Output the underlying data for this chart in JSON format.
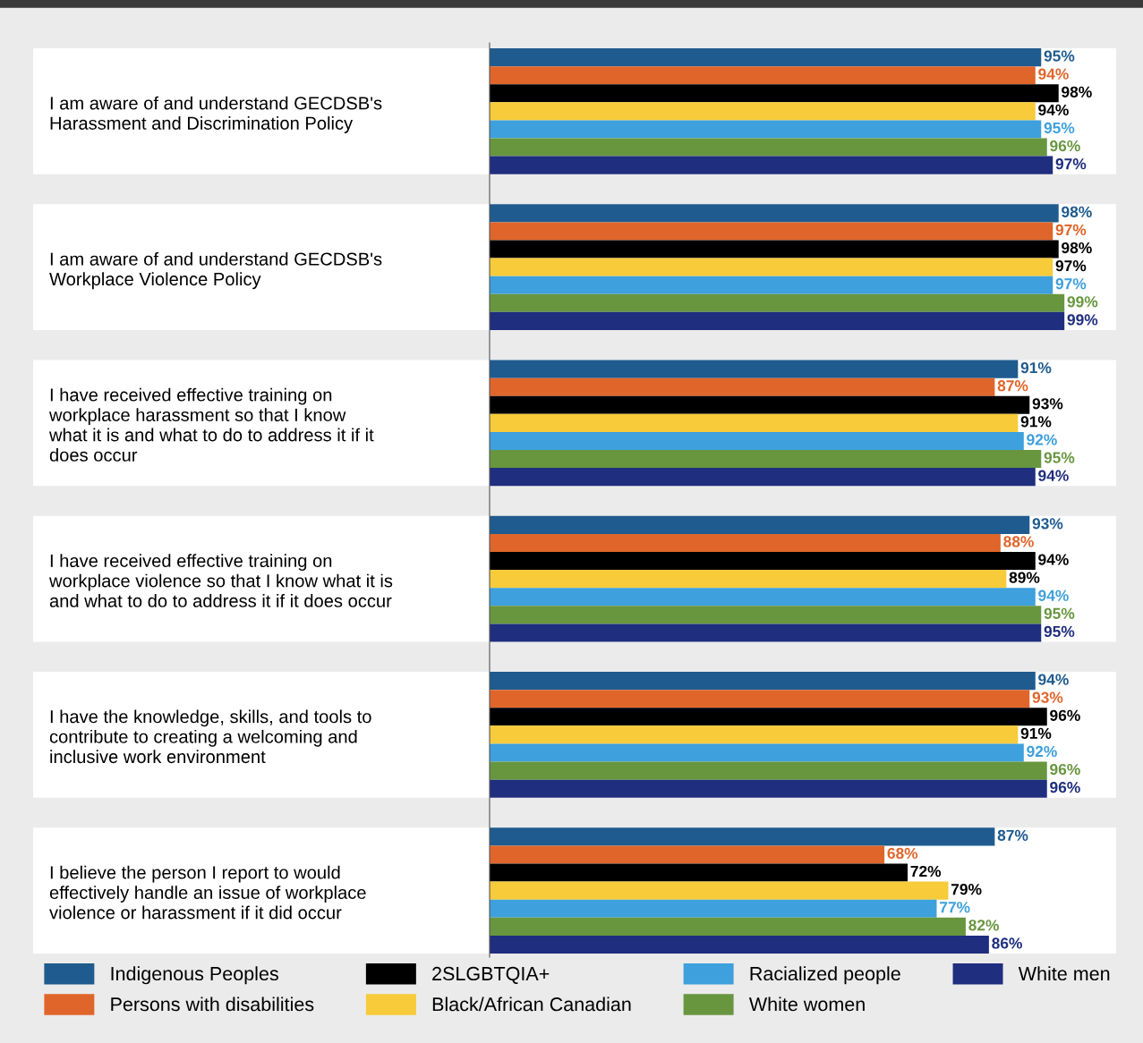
{
  "chart_data": {
    "type": "bar",
    "orientation": "horizontal",
    "tick_labels": "y",
    "legend": "bottom",
    "categories": [
      "I am aware of and understand GECDSB's\nHarassment and Discrimination Policy",
      "I am aware of and understand GECDSB's\nWorkplace Violence Policy",
      "I have received effective training on\nworkplace harassment so that I know\nwhat it is and what to do to address it if it\ndoes occur",
      "I have received effective training on\nworkplace violence so that I know what it is\nand what to do to address it if it does occur",
      "I have the knowledge, skills, and tools to\ncontribute to creating a welcoming and\ninclusive work environment",
      "I believe the person I report to would\neffectively handle an issue of workplace\nviolence or harassment if it did occur"
    ],
    "series": [
      {
        "name": "Indigenous Peoples",
        "color": "#1f5b8e",
        "values": [
          95,
          98,
          91,
          93,
          94,
          87
        ],
        "value_labels": [
          "95%",
          "98%",
          "91%",
          "93%",
          "94%",
          "87%"
        ]
      },
      {
        "name": "Persons with disabilities",
        "color": "#e0652a",
        "values": [
          94,
          97,
          87,
          88,
          93,
          68
        ],
        "value_labels": [
          "94%",
          "97%",
          "87%",
          "88%",
          "93%",
          "68%"
        ]
      },
      {
        "name": "2SLGBTQIA+",
        "color": "#000000",
        "values": [
          98,
          98,
          93,
          94,
          96,
          72
        ],
        "value_labels": [
          "98%",
          "98%",
          "93%",
          "94%",
          "96%",
          "72%"
        ]
      },
      {
        "name": "Black/African Canadian",
        "color": "#f7cb3a",
        "values": [
          94,
          97,
          91,
          89,
          91,
          79
        ],
        "value_labels": [
          "94%",
          "97%",
          "91%",
          "89%",
          "91%",
          "79%"
        ]
      },
      {
        "name": "Racialized people",
        "color": "#3ea0dc",
        "values": [
          95,
          97,
          92,
          94,
          92,
          77
        ],
        "value_labels": [
          "95%",
          "97%",
          "92%",
          "94%",
          "92%",
          "77%"
        ]
      },
      {
        "name": "White women",
        "color": "#68963f",
        "values": [
          96,
          99,
          95,
          95,
          96,
          82
        ],
        "value_labels": [
          "96%",
          "99%",
          "95%",
          "95%",
          "96%",
          "82%"
        ]
      },
      {
        "name": "White men",
        "color": "#1f2e7e",
        "values": [
          97,
          99,
          94,
          95,
          96,
          86
        ],
        "value_labels": [
          "97%",
          "99%",
          "94%",
          "95%",
          "96%",
          "86%"
        ]
      }
    ]
  }
}
